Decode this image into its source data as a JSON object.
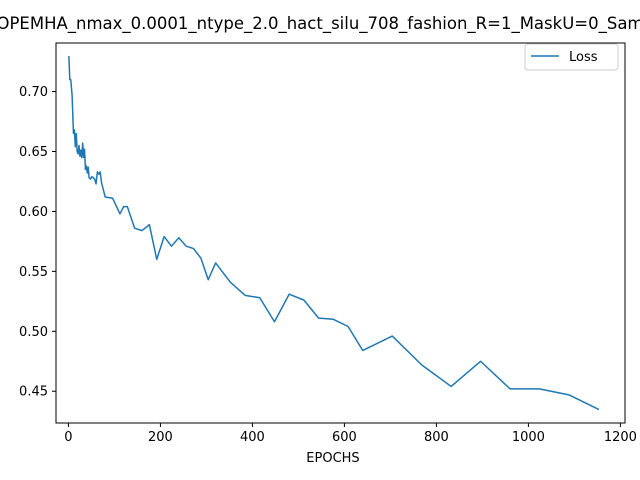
{
  "chart_data": {
    "type": "line",
    "title": "OPEMHA_nmax_0.0001_ntype_2.0_hact_silu_708_fashion_R=1_MaskU=0_Sam",
    "xlabel": "EPOCHS",
    "ylabel": "",
    "xlim": [
      -27,
      1210
    ],
    "ylim": [
      0.4235,
      0.7405
    ],
    "xticks": [
      0,
      200,
      400,
      600,
      800,
      1000,
      1200
    ],
    "yticks": [
      0.45,
      0.5,
      0.55,
      0.6,
      0.65,
      0.7
    ],
    "xtick_labels": [
      "0",
      "200",
      "400",
      "600",
      "800",
      "1000",
      "1200"
    ],
    "ytick_labels": [
      "0.45",
      "0.50",
      "0.55",
      "0.60",
      "0.65",
      "0.70"
    ],
    "grid": false,
    "legend_position": "top-right",
    "series": [
      {
        "name": "Loss",
        "color": "#1f77b4",
        "x": [
          1,
          3,
          5,
          8,
          11,
          13,
          15,
          17,
          19,
          21,
          23,
          25,
          27,
          29,
          31,
          33,
          35,
          37,
          39,
          41,
          43,
          45,
          48,
          51,
          54,
          57,
          60,
          63,
          66,
          69,
          72,
          80,
          96,
          112,
          120,
          128,
          144,
          160,
          176,
          192,
          208,
          224,
          240,
          256,
          272,
          288,
          304,
          320,
          352,
          384,
          416,
          448,
          480,
          512,
          544,
          576,
          608,
          640,
          704,
          768,
          832,
          896,
          960,
          1024,
          1088,
          1152
        ],
        "y": [
          0.729,
          0.71,
          0.71,
          0.697,
          0.665,
          0.668,
          0.654,
          0.665,
          0.65,
          0.648,
          0.655,
          0.646,
          0.651,
          0.645,
          0.657,
          0.645,
          0.652,
          0.635,
          0.638,
          0.632,
          0.637,
          0.628,
          0.627,
          0.629,
          0.628,
          0.627,
          0.623,
          0.633,
          0.631,
          0.633,
          0.624,
          0.612,
          0.611,
          0.598,
          0.604,
          0.604,
          0.586,
          0.584,
          0.589,
          0.56,
          0.579,
          0.571,
          0.578,
          0.571,
          0.569,
          0.561,
          0.543,
          0.557,
          0.541,
          0.53,
          0.528,
          0.508,
          0.531,
          0.526,
          0.511,
          0.51,
          0.504,
          0.484,
          0.496,
          0.472,
          0.454,
          0.475,
          0.452,
          0.452,
          0.447,
          0.435
        ]
      }
    ]
  }
}
